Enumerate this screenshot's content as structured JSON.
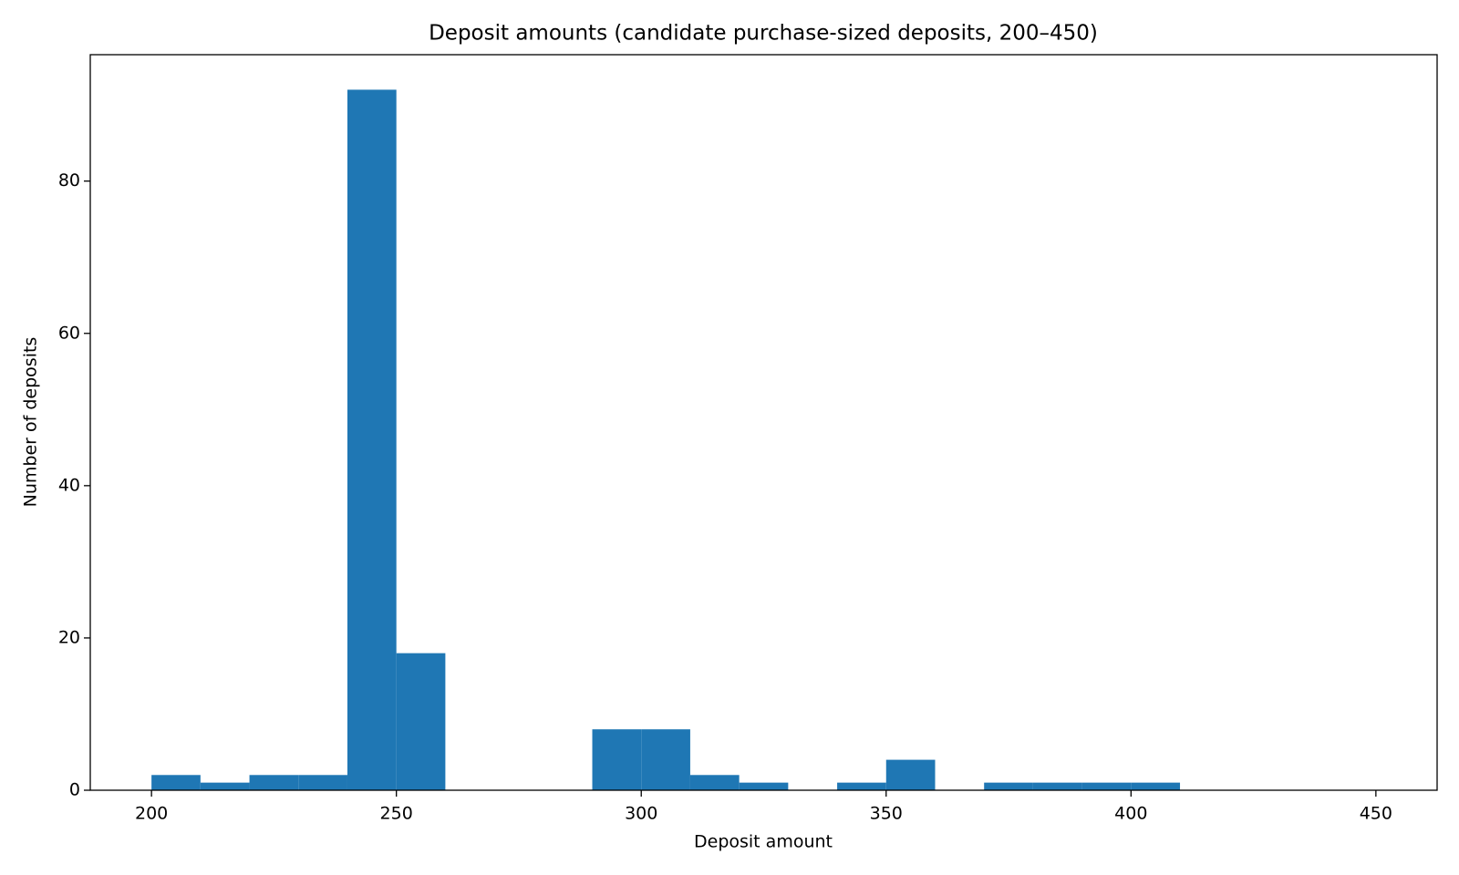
{
  "chart_data": {
    "type": "histogram",
    "title": "Deposit amounts (candidate purchase-sized deposits, 200–450)",
    "x_label": "Deposit amount",
    "y_label": "Number of deposits",
    "bins": [
      200,
      210,
      220,
      230,
      240,
      250,
      260,
      270,
      280,
      290,
      300,
      310,
      320,
      330,
      340,
      350,
      360,
      370,
      380,
      390,
      400,
      410,
      420,
      430,
      440,
      450
    ],
    "counts": [
      2,
      1,
      2,
      2,
      92,
      18,
      0,
      0,
      0,
      8,
      8,
      2,
      1,
      0,
      1,
      4,
      0,
      1,
      1,
      1,
      1,
      0,
      0,
      0,
      0
    ],
    "color": "#1f77b4",
    "xlim": [
      187.5,
      462.5
    ],
    "ylim": [
      0,
      96.6
    ],
    "xticks": [
      200,
      250,
      300,
      350,
      400,
      450
    ],
    "yticks": [
      0,
      20,
      40,
      60,
      80
    ],
    "grid": false
  }
}
